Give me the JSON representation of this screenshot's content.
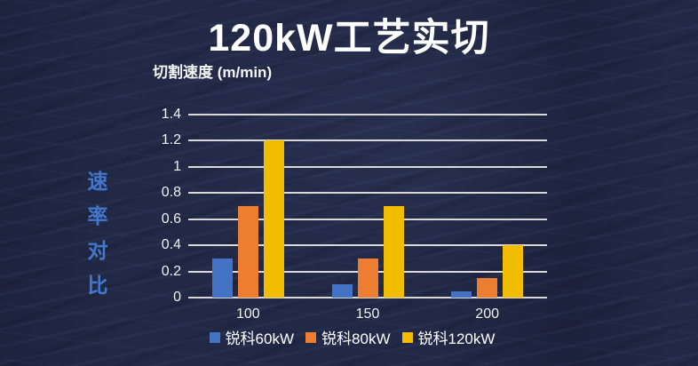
{
  "page": {
    "side_label": "速率对比"
  },
  "colors": {
    "background": "#222946",
    "side_label_blue": "#4377cd",
    "gridline": "#d9d9d9",
    "text": "#ffffff"
  },
  "chart_data": {
    "type": "bar",
    "title": "120kW工艺实切",
    "axis_title": "切割速度 (m/min)",
    "xlabel": "",
    "ylabel": "切割速度 (m/min)",
    "categories": [
      "100",
      "150",
      "200"
    ],
    "series": [
      {
        "name": "锐科60kW",
        "color": "#4472C4",
        "values": [
          0.3,
          0.1,
          0.05
        ]
      },
      {
        "name": "锐科80kW",
        "color": "#ED7D31",
        "values": [
          0.7,
          0.3,
          0.15
        ]
      },
      {
        "name": "锐科120kW",
        "color": "#F2BC00",
        "values": [
          1.2,
          0.7,
          0.4
        ]
      }
    ],
    "ylim": [
      0,
      1.4
    ],
    "yticks": [
      0,
      0.2,
      0.4,
      0.6,
      0.8,
      1,
      1.2,
      1.4
    ],
    "ytick_labels": [
      "0",
      "0.2",
      "0.4",
      "0.6",
      "0.8",
      "1",
      "1.2",
      "1.4"
    ],
    "grid": "horizontal",
    "legend_position": "bottom"
  }
}
